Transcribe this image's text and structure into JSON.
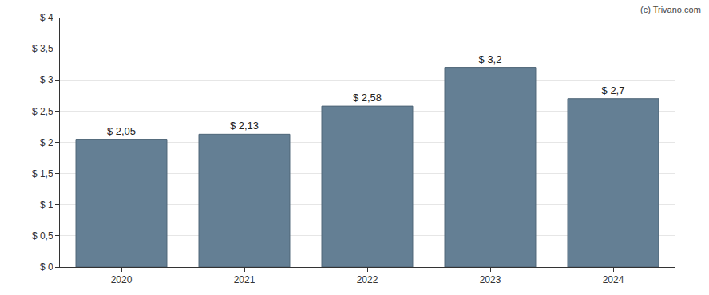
{
  "chart_data": {
    "type": "bar",
    "categories": [
      "2020",
      "2021",
      "2022",
      "2023",
      "2024"
    ],
    "values": [
      2.05,
      2.13,
      2.58,
      3.2,
      2.7
    ],
    "value_labels": [
      "$ 2,05",
      "$ 2,13",
      "$ 2,58",
      "$ 3,2",
      "$ 2,7"
    ],
    "data_labels": true,
    "color": "#647f94",
    "ylim": [
      0,
      4
    ],
    "yticks": [
      {
        "value": 0,
        "label": "$ 0"
      },
      {
        "value": 0.5,
        "label": "$ 0,5"
      },
      {
        "value": 1,
        "label": "$ 1"
      },
      {
        "value": 1.5,
        "label": "$ 1,5"
      },
      {
        "value": 2,
        "label": "$ 2"
      },
      {
        "value": 2.5,
        "label": "$ 2,5"
      },
      {
        "value": 3,
        "label": "$ 3"
      },
      {
        "value": 3.5,
        "label": "$ 3,5"
      },
      {
        "value": 4,
        "label": "$ 4"
      }
    ],
    "grid": true,
    "annotations": [
      {
        "text": "(c) Trivano.com"
      }
    ]
  }
}
